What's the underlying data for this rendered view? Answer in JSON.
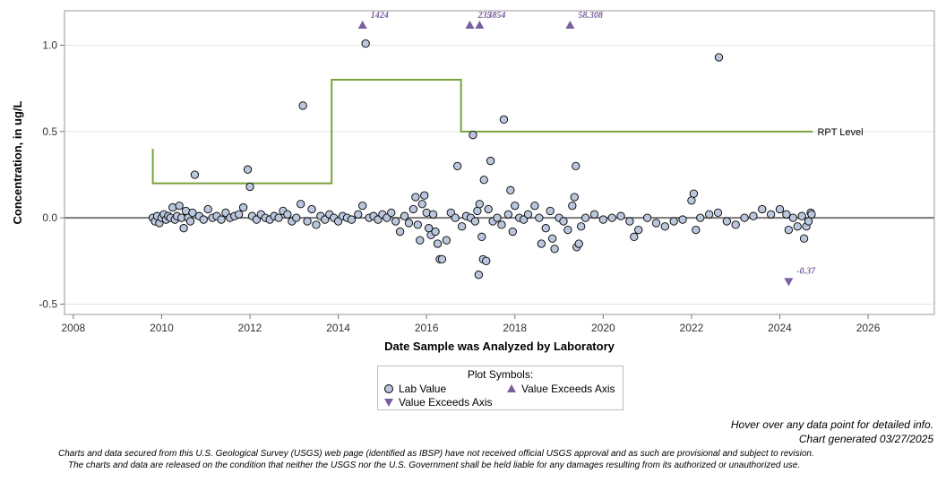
{
  "chart_data": {
    "type": "scatter",
    "xlabel": "Date Sample was Analyzed by Laboratory",
    "ylabel": "Concentration, in ug/L",
    "xlim": [
      2007.8,
      2027.5
    ],
    "ylim": [
      -0.56,
      1.2
    ],
    "x_ticks": [
      "2008",
      "2010",
      "2012",
      "2014",
      "2016",
      "2018",
      "2020",
      "2022",
      "2024",
      "2026"
    ],
    "y_ticks": [
      "-0.5",
      "0.0",
      "0.5",
      "1.0"
    ],
    "zero_line": 0,
    "grid": "horizontal",
    "colors": {
      "lab_value": "#b9c6dc",
      "exceeds": "#7a5f9e",
      "rpt": "#7aa23c",
      "zero": "#777777"
    },
    "rpt_level": {
      "label": "RPT Level",
      "steps": [
        [
          2009.8,
          0.4
        ],
        [
          2009.8,
          0.2
        ],
        [
          2013.85,
          0.2
        ],
        [
          2013.85,
          0.8
        ],
        [
          2016.78,
          0.8
        ],
        [
          2016.78,
          0.5
        ],
        [
          2024.75,
          0.5
        ]
      ]
    },
    "lab_values": [
      [
        2009.8,
        0.0
      ],
      [
        2009.85,
        -0.02
      ],
      [
        2009.9,
        0.01
      ],
      [
        2009.95,
        -0.03
      ],
      [
        2010.0,
        0.0
      ],
      [
        2010.05,
        0.02
      ],
      [
        2010.1,
        -0.01
      ],
      [
        2010.15,
        0.01
      ],
      [
        2010.2,
        0.0
      ],
      [
        2010.25,
        0.06
      ],
      [
        2010.3,
        -0.01
      ],
      [
        2010.35,
        0.01
      ],
      [
        2010.4,
        0.07
      ],
      [
        2010.45,
        0.0
      ],
      [
        2010.5,
        -0.06
      ],
      [
        2010.55,
        0.04
      ],
      [
        2010.6,
        0.0
      ],
      [
        2010.65,
        -0.02
      ],
      [
        2010.7,
        0.03
      ],
      [
        2010.75,
        0.25
      ],
      [
        2010.85,
        0.01
      ],
      [
        2010.95,
        -0.01
      ],
      [
        2011.05,
        0.05
      ],
      [
        2011.15,
        0.0
      ],
      [
        2011.25,
        0.01
      ],
      [
        2011.35,
        -0.01
      ],
      [
        2011.45,
        0.03
      ],
      [
        2011.55,
        0.0
      ],
      [
        2011.65,
        0.01
      ],
      [
        2011.75,
        0.02
      ],
      [
        2011.85,
        0.06
      ],
      [
        2011.95,
        0.28
      ],
      [
        2012.0,
        0.18
      ],
      [
        2012.05,
        0.01
      ],
      [
        2012.15,
        -0.01
      ],
      [
        2012.25,
        0.02
      ],
      [
        2012.35,
        0.0
      ],
      [
        2012.45,
        -0.01
      ],
      [
        2012.55,
        0.01
      ],
      [
        2012.65,
        0.0
      ],
      [
        2012.75,
        0.04
      ],
      [
        2012.85,
        0.02
      ],
      [
        2012.95,
        -0.02
      ],
      [
        2013.05,
        0.0
      ],
      [
        2013.15,
        0.08
      ],
      [
        2013.2,
        0.65
      ],
      [
        2013.3,
        -0.02
      ],
      [
        2013.4,
        0.05
      ],
      [
        2013.5,
        -0.04
      ],
      [
        2013.6,
        0.01
      ],
      [
        2013.7,
        -0.01
      ],
      [
        2013.8,
        0.02
      ],
      [
        2013.9,
        0.0
      ],
      [
        2014.0,
        -0.02
      ],
      [
        2014.1,
        0.01
      ],
      [
        2014.2,
        0.0
      ],
      [
        2014.3,
        -0.01
      ],
      [
        2014.45,
        0.02
      ],
      [
        2014.55,
        0.07
      ],
      [
        2014.62,
        1.01
      ],
      [
        2014.7,
        0.0
      ],
      [
        2014.8,
        0.01
      ],
      [
        2014.9,
        -0.01
      ],
      [
        2015.0,
        0.02
      ],
      [
        2015.1,
        0.0
      ],
      [
        2015.2,
        0.03
      ],
      [
        2015.3,
        -0.02
      ],
      [
        2015.4,
        -0.08
      ],
      [
        2015.5,
        0.01
      ],
      [
        2015.6,
        -0.03
      ],
      [
        2015.7,
        0.05
      ],
      [
        2015.75,
        0.12
      ],
      [
        2015.8,
        -0.04
      ],
      [
        2015.85,
        -0.13
      ],
      [
        2015.9,
        0.08
      ],
      [
        2015.95,
        0.13
      ],
      [
        2016.0,
        0.03
      ],
      [
        2016.05,
        -0.06
      ],
      [
        2016.1,
        -0.1
      ],
      [
        2016.15,
        0.02
      ],
      [
        2016.2,
        -0.08
      ],
      [
        2016.25,
        -0.15
      ],
      [
        2016.3,
        -0.24
      ],
      [
        2016.35,
        -0.24
      ],
      [
        2016.45,
        -0.13
      ],
      [
        2016.55,
        0.03
      ],
      [
        2016.65,
        0.0
      ],
      [
        2016.7,
        0.3
      ],
      [
        2016.8,
        -0.05
      ],
      [
        2016.9,
        0.01
      ],
      [
        2017.0,
        0.0
      ],
      [
        2017.05,
        0.48
      ],
      [
        2017.1,
        -0.02
      ],
      [
        2017.15,
        0.04
      ],
      [
        2017.18,
        -0.33
      ],
      [
        2017.2,
        0.08
      ],
      [
        2017.25,
        -0.11
      ],
      [
        2017.28,
        -0.24
      ],
      [
        2017.3,
        0.22
      ],
      [
        2017.35,
        -0.25
      ],
      [
        2017.4,
        0.05
      ],
      [
        2017.45,
        0.33
      ],
      [
        2017.5,
        -0.02
      ],
      [
        2017.6,
        0.0
      ],
      [
        2017.7,
        -0.04
      ],
      [
        2017.75,
        0.57
      ],
      [
        2017.85,
        0.02
      ],
      [
        2017.9,
        0.16
      ],
      [
        2017.95,
        -0.08
      ],
      [
        2018.0,
        0.07
      ],
      [
        2018.1,
        0.0
      ],
      [
        2018.2,
        -0.01
      ],
      [
        2018.3,
        0.02
      ],
      [
        2018.45,
        0.07
      ],
      [
        2018.55,
        0.0
      ],
      [
        2018.6,
        -0.15
      ],
      [
        2018.7,
        -0.06
      ],
      [
        2018.8,
        0.04
      ],
      [
        2018.85,
        -0.12
      ],
      [
        2018.9,
        -0.18
      ],
      [
        2019.0,
        0.0
      ],
      [
        2019.1,
        -0.02
      ],
      [
        2019.2,
        -0.07
      ],
      [
        2019.3,
        0.07
      ],
      [
        2019.35,
        0.12
      ],
      [
        2019.38,
        0.3
      ],
      [
        2019.4,
        -0.17
      ],
      [
        2019.45,
        -0.15
      ],
      [
        2019.5,
        -0.05
      ],
      [
        2019.6,
        0.0
      ],
      [
        2019.8,
        0.02
      ],
      [
        2020.0,
        -0.01
      ],
      [
        2020.2,
        0.0
      ],
      [
        2020.4,
        0.01
      ],
      [
        2020.6,
        -0.02
      ],
      [
        2020.7,
        -0.11
      ],
      [
        2020.8,
        -0.07
      ],
      [
        2021.0,
        0.0
      ],
      [
        2021.2,
        -0.03
      ],
      [
        2021.4,
        -0.05
      ],
      [
        2021.6,
        -0.02
      ],
      [
        2021.8,
        -0.01
      ],
      [
        2022.0,
        0.1
      ],
      [
        2022.05,
        0.14
      ],
      [
        2022.1,
        -0.07
      ],
      [
        2022.2,
        0.0
      ],
      [
        2022.4,
        0.02
      ],
      [
        2022.6,
        0.03
      ],
      [
        2022.62,
        0.93
      ],
      [
        2022.8,
        -0.02
      ],
      [
        2023.0,
        -0.04
      ],
      [
        2023.2,
        0.0
      ],
      [
        2023.4,
        0.01
      ],
      [
        2023.6,
        0.05
      ],
      [
        2023.8,
        0.02
      ],
      [
        2024.0,
        0.05
      ],
      [
        2024.15,
        0.02
      ],
      [
        2024.2,
        -0.07
      ],
      [
        2024.3,
        0.0
      ],
      [
        2024.4,
        -0.05
      ],
      [
        2024.5,
        0.01
      ],
      [
        2024.55,
        -0.12
      ],
      [
        2024.6,
        -0.05
      ],
      [
        2024.65,
        -0.02
      ],
      [
        2024.7,
        0.03
      ],
      [
        2024.72,
        0.02
      ]
    ],
    "exceeds_axis": [
      {
        "x": 2014.55,
        "dir": "up",
        "label": "1424"
      },
      {
        "x": 2016.98,
        "dir": "up",
        "label": "235"
      },
      {
        "x": 2017.2,
        "dir": "up",
        "label": "3854"
      },
      {
        "x": 2019.25,
        "dir": "up",
        "label": "58.308"
      },
      {
        "x": 2024.2,
        "dir": "down",
        "value": -0.37,
        "label": "-0.37"
      }
    ]
  },
  "legend": {
    "title": "Plot Symbols:",
    "lab_value": "Lab Value",
    "exceeds_up": "Value Exceeds Axis",
    "exceeds_down": "Value Exceeds Axis"
  },
  "footer": {
    "hover": "Hover over any data point for detailed info.",
    "generated": "Chart generated 03/27/2025",
    "disclaimer1": "Charts and data secured from this U.S. Geological Survey (USGS) web page (identified as IBSP) have not received official USGS approval and as such are provisional and subject to revision.",
    "disclaimer2": "The charts and data are released on the condition that neither the USGS nor the U.S. Government shall be held liable for any damages resulting from its authorized or unauthorized use."
  }
}
